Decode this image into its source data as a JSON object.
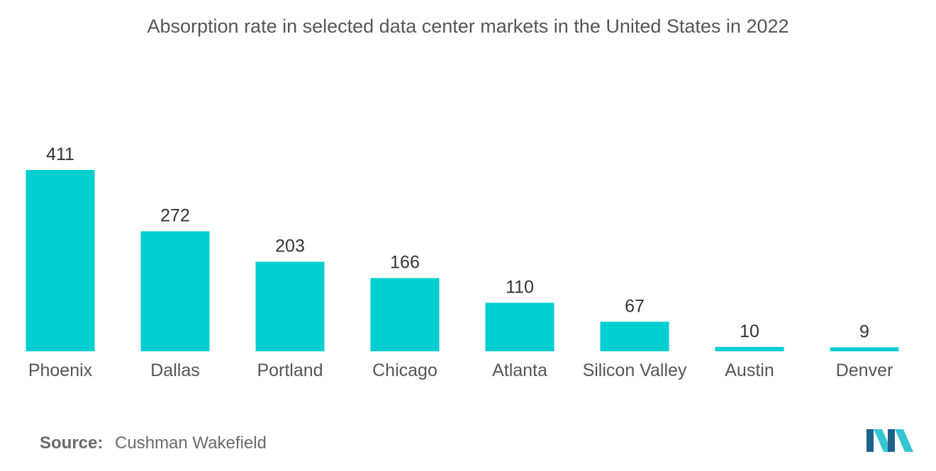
{
  "chart_data": {
    "type": "bar",
    "title": "Absorption rate in selected data center markets in the United States in 2022",
    "categories": [
      "Phoenix",
      "Dallas",
      "Portland",
      "Chicago",
      "Atlanta",
      "Silicon Valley",
      "Austin",
      "Denver"
    ],
    "values": [
      411,
      272,
      203,
      166,
      110,
      67,
      10,
      9
    ],
    "xlabel": "",
    "ylabel": "",
    "ylim": [
      0,
      411
    ],
    "grid": false,
    "legend": "none"
  },
  "source": {
    "label": "Source:",
    "text": "Cushman Wakefield"
  },
  "colors": {
    "bar": "#00CED1",
    "text": "#555555",
    "logo_dark": "#1f5f8b",
    "logo_light": "#36c6d3"
  },
  "logo": {
    "icon": "mordor-intelligence-logo-icon"
  }
}
